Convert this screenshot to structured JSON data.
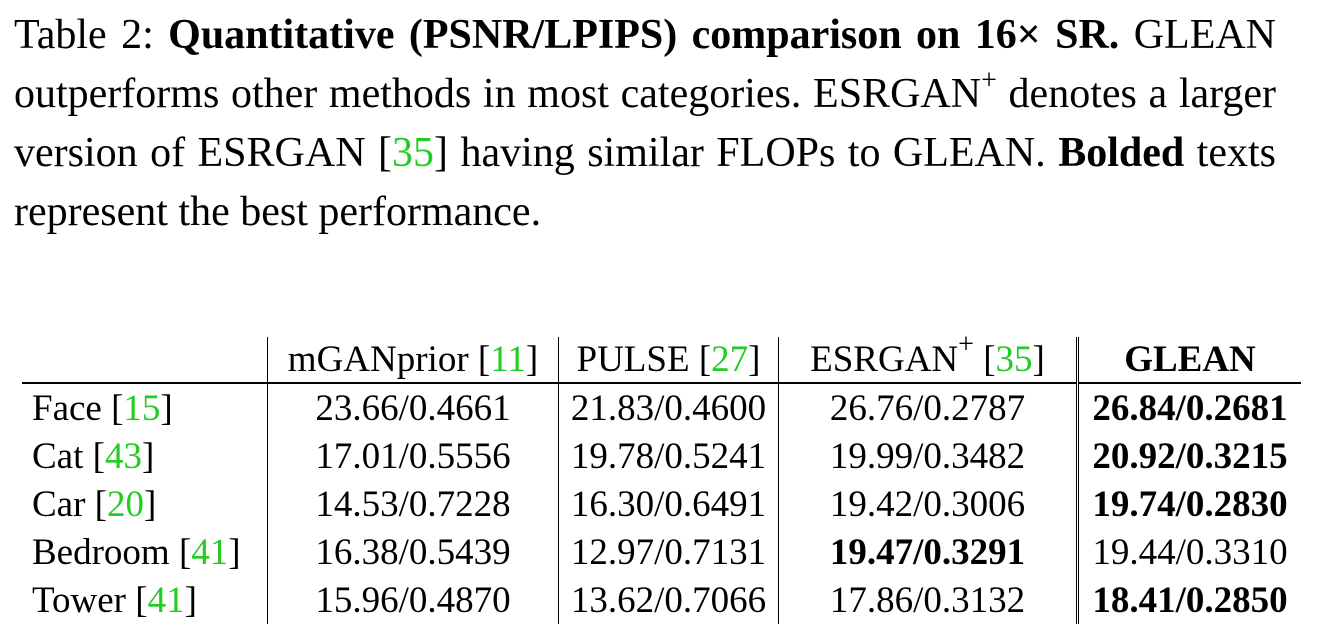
{
  "caption": {
    "label": "Table 2:",
    "bold_title": "Quantitative (PSNR/LPIPS) comparison on 16×",
    "bold_title_2": "SR.",
    "text_1": " GLEAN outperforms other methods in most categories. ESRGAN",
    "sup": "+",
    "text_2": " denotes a larger version of ESRGAN [",
    "cite_esrgan": "35",
    "text_3": "] having similar FLOPs to GLEAN. ",
    "bolded_word": "Bolded",
    "text_4": " texts represent the best performance."
  },
  "table": {
    "headers": [
      {
        "name": "mGANprior [",
        "cite": "11",
        "end": "]"
      },
      {
        "name": "PULSE [",
        "cite": "27",
        "end": "]"
      },
      {
        "name": "ESRGAN",
        "sup": "+",
        "mid": " [",
        "cite": "35",
        "end": "]"
      },
      {
        "name": "GLEAN"
      }
    ],
    "rows": [
      {
        "label": "Face [",
        "cite": "15",
        "end": "]",
        "values": [
          "23.66/0.4661",
          "21.83/0.4600",
          "26.76/0.2787",
          "26.84/0.2681"
        ]
      },
      {
        "label": "Cat [",
        "cite": "43",
        "end": "]",
        "values": [
          "17.01/0.5556",
          "19.78/0.5241",
          "19.99/0.3482",
          "20.92/0.3215"
        ]
      },
      {
        "label": "Car [",
        "cite": "20",
        "end": "]",
        "values": [
          "14.53/0.7228",
          "16.30/0.6491",
          "19.42/0.3006",
          "19.74/0.2830"
        ]
      },
      {
        "label": "Bedroom [",
        "cite": "41",
        "end": "]",
        "values": [
          "16.38/0.5439",
          "12.97/0.7131",
          "19.47/0.3291",
          "19.44/0.3310"
        ]
      },
      {
        "label": "Tower [",
        "cite": "41",
        "end": "]",
        "values": [
          "15.96/0.4870",
          "13.62/0.7066",
          "17.86/0.3132",
          "18.41/0.2850"
        ]
      }
    ]
  }
}
